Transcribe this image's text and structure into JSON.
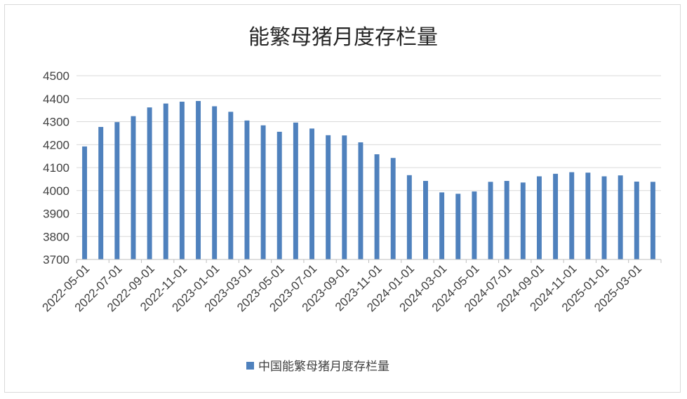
{
  "chart_data": {
    "type": "bar",
    "title": "能繁母猪月度存栏量",
    "xlabel": "",
    "ylabel": "",
    "ylim": [
      3700,
      4500
    ],
    "yticks": [
      3700,
      3800,
      3900,
      4000,
      4100,
      4200,
      4300,
      4400,
      4500
    ],
    "grid": true,
    "legend_position": "bottom",
    "colors": {
      "bar": "#4f81bd",
      "grid": "#d9d9d9",
      "axis": "#bfbfbf"
    },
    "x_tick_labels": [
      "2022-05-01",
      "2022-07-01",
      "2022-09-01",
      "2022-11-01",
      "2023-01-01",
      "2023-03-01",
      "2023-05-01",
      "2023-07-01",
      "2023-09-01",
      "2023-11-01",
      "2024-01-01",
      "2024-03-01",
      "2024-05-01",
      "2024-07-01",
      "2024-09-01",
      "2024-11-01",
      "2025-01-01",
      "2025-03-01"
    ],
    "categories": [
      "2022-05-01",
      "2022-06-01",
      "2022-07-01",
      "2022-08-01",
      "2022-09-01",
      "2022-10-01",
      "2022-11-01",
      "2022-12-01",
      "2023-01-01",
      "2023-02-01",
      "2023-03-01",
      "2023-04-01",
      "2023-05-01",
      "2023-06-01",
      "2023-07-01",
      "2023-08-01",
      "2023-09-01",
      "2023-10-01",
      "2023-11-01",
      "2023-12-01",
      "2024-01-01",
      "2024-02-01",
      "2024-03-01",
      "2024-04-01",
      "2024-05-01",
      "2024-06-01",
      "2024-07-01",
      "2024-08-01",
      "2024-09-01",
      "2024-10-01",
      "2024-11-01",
      "2024-12-01",
      "2025-01-01",
      "2025-02-01",
      "2025-03-01",
      "2025-04-01"
    ],
    "series": [
      {
        "name": "中国能繁母猪月度存栏量",
        "values": [
          4192,
          4277,
          4298,
          4324,
          4362,
          4379,
          4387,
          4390,
          4367,
          4343,
          4305,
          4284,
          4256,
          4296,
          4270,
          4241,
          4240,
          4210,
          4158,
          4142,
          4067,
          4042,
          3992,
          3986,
          3996,
          4038,
          4042,
          4035,
          4062,
          4073,
          4080,
          4078,
          4062,
          4066,
          4039,
          4038
        ]
      }
    ]
  }
}
